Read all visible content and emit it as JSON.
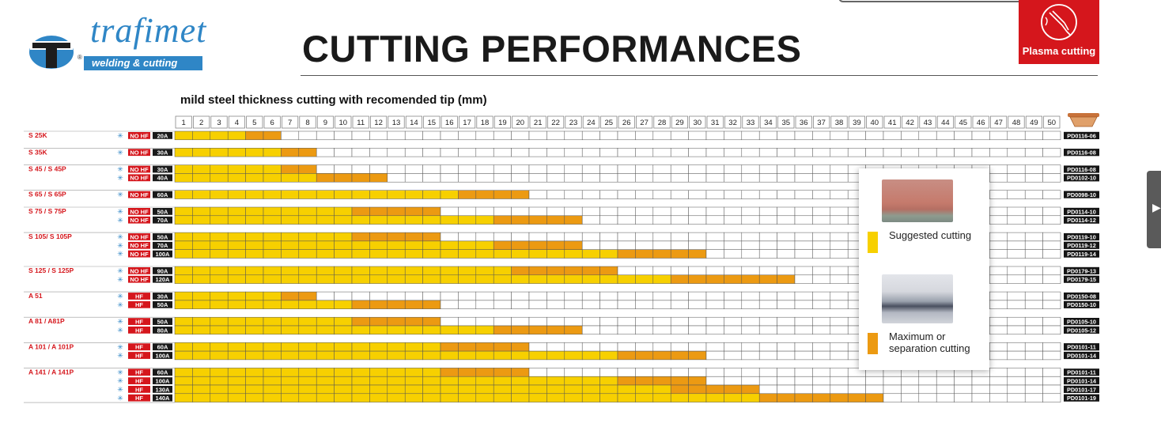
{
  "brand": {
    "name": "trafimet",
    "tagline": "welding & cutting",
    "reg": "®"
  },
  "title": "CUTTING PERFORMANCES",
  "badge": {
    "label": "Plasma cutting"
  },
  "subtitle": "mild steel thickness cutting with recomended tip (mm)",
  "colors": {
    "suggested": "#f7d000",
    "maximum": "#ec9a12",
    "hf_badge": "#d5161c",
    "amp_badge": "#1a1a1a",
    "brand_blue": "#2f86c6"
  },
  "legend": {
    "suggested": "Suggested cutting",
    "maximum": "Maximum or separation cutting"
  },
  "chart_data": {
    "type": "table",
    "columns": [
      1,
      2,
      3,
      4,
      5,
      6,
      7,
      8,
      9,
      10,
      11,
      12,
      13,
      14,
      15,
      16,
      17,
      18,
      19,
      20,
      21,
      22,
      23,
      24,
      25,
      26,
      27,
      28,
      29,
      30,
      31,
      32,
      33,
      34,
      35,
      36,
      37,
      38,
      39,
      40,
      41,
      42,
      43,
      44,
      45,
      46,
      47,
      48,
      49,
      50
    ],
    "groups": [
      {
        "model": "S 25K",
        "rows": [
          {
            "hf": "NO HF",
            "amp": "20A",
            "tip": "PD0116-06",
            "suggested": 4,
            "max": 6
          }
        ]
      },
      {
        "model": "S 35K",
        "rows": [
          {
            "hf": "NO HF",
            "amp": "30A",
            "tip": "PD0116-08",
            "suggested": 6,
            "max": 8
          }
        ]
      },
      {
        "model": "S 45 / S 45P",
        "rows": [
          {
            "hf": "NO HF",
            "amp": "30A",
            "tip": "PD0116-08",
            "suggested": 6,
            "max": 8
          },
          {
            "hf": "NO HF",
            "amp": "40A",
            "tip": "PD0102-10",
            "suggested": 8,
            "max": 12
          }
        ]
      },
      {
        "model": "S 65 / S 65P",
        "rows": [
          {
            "hf": "NO HF",
            "amp": "60A",
            "tip": "PD0098-10",
            "suggested": 16,
            "max": 20
          }
        ]
      },
      {
        "model": "S 75 / S 75P",
        "rows": [
          {
            "hf": "NO HF",
            "amp": "50A",
            "tip": "PD0114-10",
            "suggested": 10,
            "max": 15
          },
          {
            "hf": "NO HF",
            "amp": "70A",
            "tip": "PD0114-12",
            "suggested": 18,
            "max": 23
          }
        ]
      },
      {
        "model": "S 105/ S 105P",
        "rows": [
          {
            "hf": "NO HF",
            "amp": "50A",
            "tip": "PD0119-10",
            "suggested": 10,
            "max": 15
          },
          {
            "hf": "NO HF",
            "amp": "70A",
            "tip": "PD0119-12",
            "suggested": 18,
            "max": 23
          },
          {
            "hf": "NO HF",
            "amp": "100A",
            "tip": "PD0119-14",
            "suggested": 25,
            "max": 30
          }
        ]
      },
      {
        "model": "S 125 / S 125P",
        "rows": [
          {
            "hf": "NO HF",
            "amp": "90A",
            "tip": "PD0179-13",
            "suggested": 19,
            "max": 25
          },
          {
            "hf": "NO HF",
            "amp": "120A",
            "tip": "PD0179-15",
            "suggested": 28,
            "max": 35
          }
        ]
      },
      {
        "model": "A 51",
        "rows": [
          {
            "hf": "HF",
            "amp": "30A",
            "tip": "PD0150-08",
            "suggested": 6,
            "max": 8
          },
          {
            "hf": "HF",
            "amp": "50A",
            "tip": "PD0150-10",
            "suggested": 10,
            "max": 15
          }
        ]
      },
      {
        "model": "A 81 / A81P",
        "rows": [
          {
            "hf": "HF",
            "amp": "50A",
            "tip": "PD0105-10",
            "suggested": 10,
            "max": 15
          },
          {
            "hf": "HF",
            "amp": "80A",
            "tip": "PD0105-12",
            "suggested": 18,
            "max": 23
          }
        ]
      },
      {
        "model": "A 101 / A 101P",
        "rows": [
          {
            "hf": "HF",
            "amp": "60A",
            "tip": "PD0101-11",
            "suggested": 15,
            "max": 20
          },
          {
            "hf": "HF",
            "amp": "100A",
            "tip": "PD0101-14",
            "suggested": 25,
            "max": 30
          }
        ]
      },
      {
        "model": "A 141 / A 141P",
        "rows": [
          {
            "hf": "HF",
            "amp": "60A",
            "tip": "PD0101-11",
            "suggested": 15,
            "max": 20
          },
          {
            "hf": "HF",
            "amp": "100A",
            "tip": "PD0101-14",
            "suggested": 25,
            "max": 30
          },
          {
            "hf": "HF",
            "amp": "130A",
            "tip": "PD0101-17",
            "suggested": 28,
            "max": 33
          },
          {
            "hf": "HF",
            "amp": "140A",
            "tip": "PD0101-19",
            "suggested": 33,
            "max": 40
          }
        ]
      }
    ]
  }
}
